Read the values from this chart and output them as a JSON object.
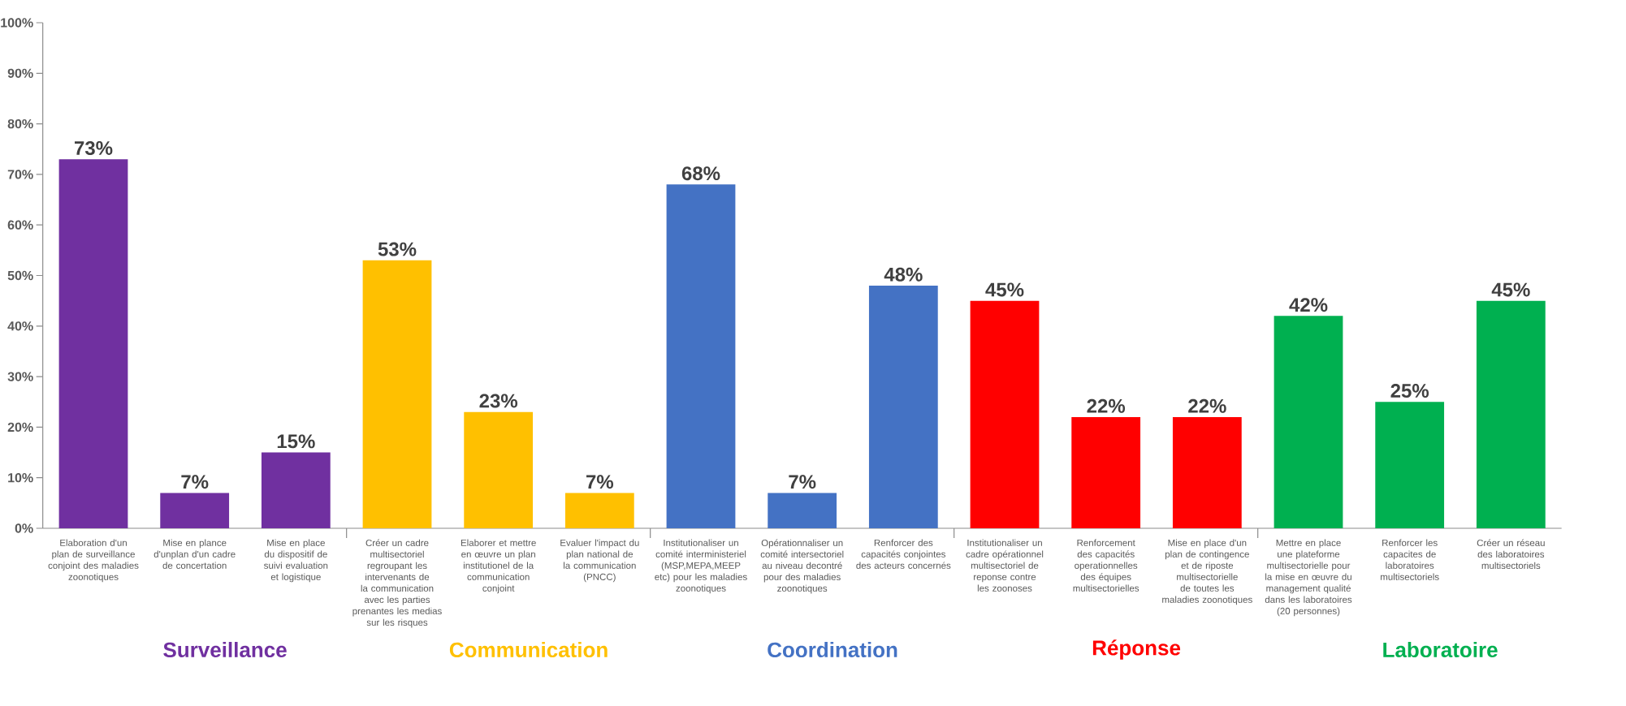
{
  "chart_data": {
    "type": "bar",
    "categories": [
      "Elaboration d'un plan de surveillance conjoint des maladies zoonotiques",
      "Mise en plance d'unplan d'un cadre de concertation",
      "Mise en place du dispositif de suivi evaluation et logistique",
      "Créer un cadre multisectoriel regroupant les intervenants de la communication avec les parties prenantes les medias sur les risques",
      "Elaborer et mettre en œuvre un plan institutionel de la communication conjoint",
      "Evaluer l'impact du plan national de la communication (PNCC)",
      "Institutionaliser un comité interministeriel (MSP,MEPA,MEEP etc) pour les maladies zoonotiques",
      "Opérationnaliser un comité intersectoriel au niveau decontré pour des maladies zoonotiques",
      "Renforcer des capacités conjointes des acteurs concernés",
      "Institutionaliser un cadre opérationnel multisectoriel de reponse contre les zoonoses",
      "Renforcement des capacités operationnelles des équipes multisectorielles",
      "Mise en place d'un plan de contingence et de riposte multisectorielle de toutes les maladies zoonotiques",
      "Mettre en place une plateforme multisectorielle pour la mise en œuvre du management qualité dans les laboratoires (20 personnes)",
      "Renforcer les capacites de laboratoires multisectoriels",
      "Créer un réseau des laboratoires multisectoriels"
    ],
    "values": [
      73,
      7,
      15,
      53,
      23,
      7,
      68,
      7,
      48,
      45,
      22,
      22,
      42,
      25,
      45
    ],
    "value_labels": [
      "73%",
      "7%",
      "15%",
      "53%",
      "23%",
      "7%",
      "68%",
      "7%",
      "48%",
      "45%",
      "22%",
      "22%",
      "42%",
      "25%",
      "45%"
    ],
    "colors": [
      "#7030a0",
      "#7030a0",
      "#7030a0",
      "#ffc000",
      "#ffc000",
      "#ffc000",
      "#4472c4",
      "#4472c4",
      "#4472c4",
      "#ff0000",
      "#ff0000",
      "#ff0000",
      "#00b050",
      "#00b050",
      "#00b050"
    ],
    "ylim": [
      0,
      100
    ],
    "yticks": [
      {
        "value": 0,
        "label": "0%"
      },
      {
        "value": 10,
        "label": "10%"
      },
      {
        "value": 20,
        "label": "20%"
      },
      {
        "value": 30,
        "label": "30%"
      },
      {
        "value": 40,
        "label": "40%"
      },
      {
        "value": 50,
        "label": "50%"
      },
      {
        "value": 60,
        "label": "60%"
      },
      {
        "value": 70,
        "label": "70%"
      },
      {
        "value": 80,
        "label": "80%"
      },
      {
        "value": 90,
        "label": "90%"
      },
      {
        "value": 100,
        "label": "100%"
      }
    ],
    "annotations": [
      "Surveillance",
      "Communication",
      "Coordination",
      "Réponse",
      "Laboratoire"
    ]
  }
}
